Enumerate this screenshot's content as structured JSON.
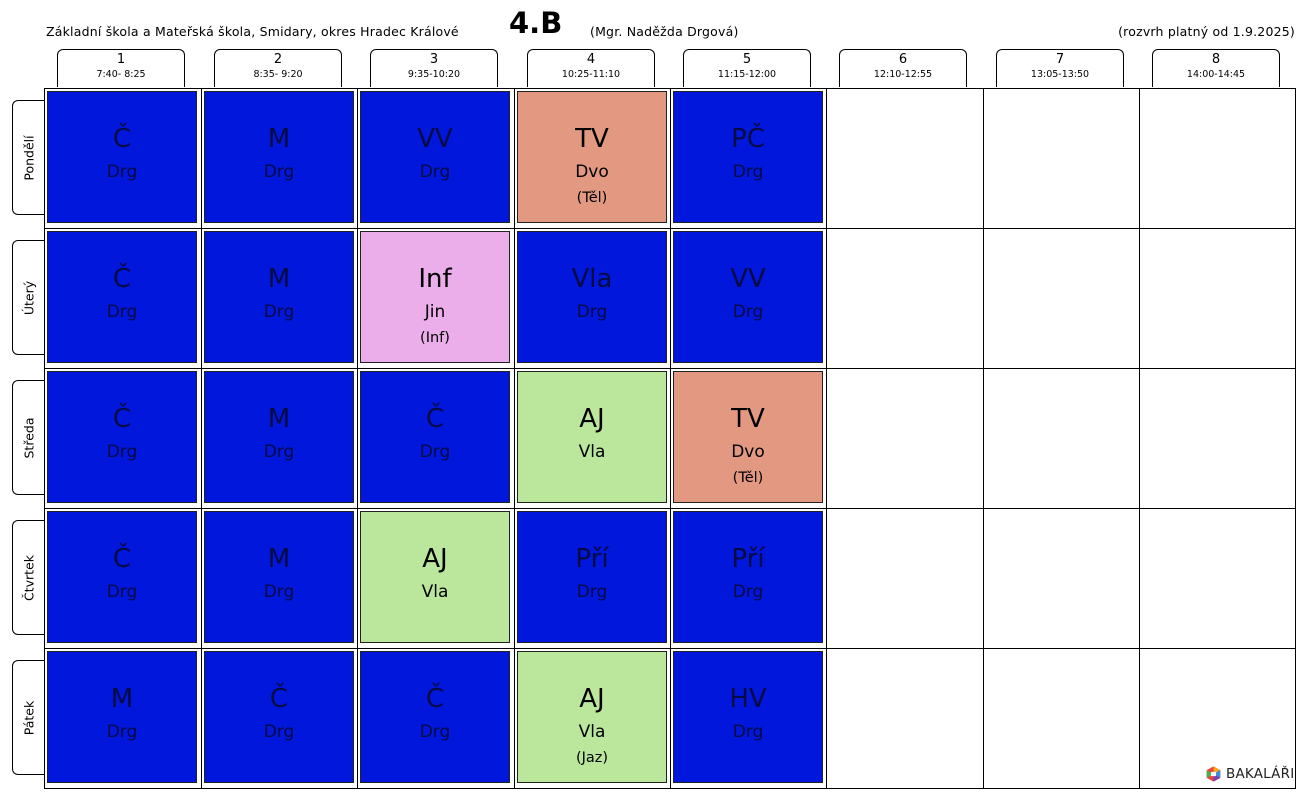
{
  "header": {
    "school": "Základní škola a Mateřská škola, Smidary, okres Hradec Králové",
    "class_name": "4.B",
    "teacher": "(Mgr. Naděžda Drgová)",
    "validity": "(rozvrh platný od 1.9.2025)"
  },
  "periods": [
    {
      "num": "1",
      "time": "7:40- 8:25"
    },
    {
      "num": "2",
      "time": "8:35- 9:20"
    },
    {
      "num": "3",
      "time": "9:35-10:20"
    },
    {
      "num": "4",
      "time": "10:25-11:10"
    },
    {
      "num": "5",
      "time": "11:15-12:00"
    },
    {
      "num": "6",
      "time": "12:10-12:55"
    },
    {
      "num": "7",
      "time": "13:05-13:50"
    },
    {
      "num": "8",
      "time": "14:00-14:45"
    }
  ],
  "colors": {
    "blue": "#0217dc",
    "salmon": "#e39882",
    "pink": "#ebaeea",
    "green": "#bae79c"
  },
  "days": [
    {
      "name": "Pondělí",
      "lessons": [
        {
          "subject": "Č",
          "teacher": "Drg",
          "room": "",
          "color": "blue"
        },
        {
          "subject": "M",
          "teacher": "Drg",
          "room": "",
          "color": "blue"
        },
        {
          "subject": "VV",
          "teacher": "Drg",
          "room": "",
          "color": "blue"
        },
        {
          "subject": "TV",
          "teacher": "Dvo",
          "room": "(Těl)",
          "color": "salmon"
        },
        {
          "subject": "PČ",
          "teacher": "Drg",
          "room": "",
          "color": "blue"
        }
      ]
    },
    {
      "name": "Úterý",
      "lessons": [
        {
          "subject": "Č",
          "teacher": "Drg",
          "room": "",
          "color": "blue"
        },
        {
          "subject": "M",
          "teacher": "Drg",
          "room": "",
          "color": "blue"
        },
        {
          "subject": "Inf",
          "teacher": "Jin",
          "room": "(Inf)",
          "color": "pink"
        },
        {
          "subject": "Vla",
          "teacher": "Drg",
          "room": "",
          "color": "blue"
        },
        {
          "subject": "VV",
          "teacher": "Drg",
          "room": "",
          "color": "blue"
        }
      ]
    },
    {
      "name": "Středa",
      "lessons": [
        {
          "subject": "Č",
          "teacher": "Drg",
          "room": "",
          "color": "blue"
        },
        {
          "subject": "M",
          "teacher": "Drg",
          "room": "",
          "color": "blue"
        },
        {
          "subject": "Č",
          "teacher": "Drg",
          "room": "",
          "color": "blue"
        },
        {
          "subject": "AJ",
          "teacher": "Vla",
          "room": "",
          "color": "green"
        },
        {
          "subject": "TV",
          "teacher": "Dvo",
          "room": "(Těl)",
          "color": "salmon"
        }
      ]
    },
    {
      "name": "Čtvrtek",
      "lessons": [
        {
          "subject": "Č",
          "teacher": "Drg",
          "room": "",
          "color": "blue"
        },
        {
          "subject": "M",
          "teacher": "Drg",
          "room": "",
          "color": "blue"
        },
        {
          "subject": "AJ",
          "teacher": "Vla",
          "room": "",
          "color": "green"
        },
        {
          "subject": "Pří",
          "teacher": "Drg",
          "room": "",
          "color": "blue"
        },
        {
          "subject": "Pří",
          "teacher": "Drg",
          "room": "",
          "color": "blue"
        }
      ]
    },
    {
      "name": "Pátek",
      "lessons": [
        {
          "subject": "M",
          "teacher": "Drg",
          "room": "",
          "color": "blue"
        },
        {
          "subject": "Č",
          "teacher": "Drg",
          "room": "",
          "color": "blue"
        },
        {
          "subject": "Č",
          "teacher": "Drg",
          "room": "",
          "color": "blue"
        },
        {
          "subject": "AJ",
          "teacher": "Vla",
          "room": "(Jaz)",
          "color": "green"
        },
        {
          "subject": "HV",
          "teacher": "Drg",
          "room": "",
          "color": "blue"
        }
      ]
    }
  ],
  "logo": {
    "text": "BAKALÁŘI",
    "icon": "bakalari-logo-icon"
  }
}
